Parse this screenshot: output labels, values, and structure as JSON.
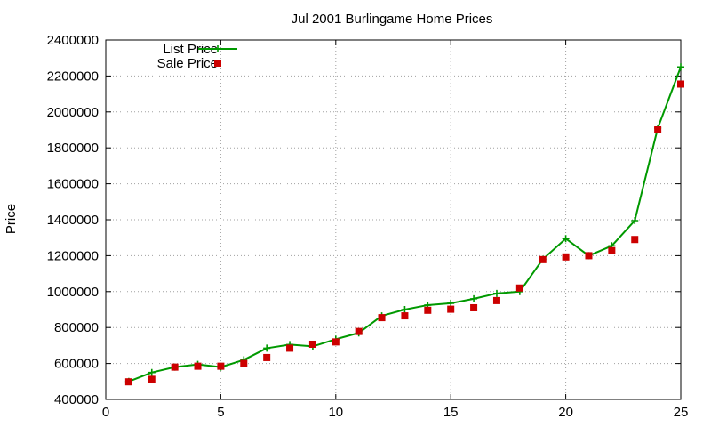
{
  "chart_data": {
    "type": "line",
    "title": "Jul 2001 Burlingame Home Prices",
    "xlabel": "",
    "ylabel": "Price",
    "xlim": [
      0,
      25
    ],
    "ylim": [
      400000,
      2400000
    ],
    "xticks": [
      0,
      5,
      10,
      15,
      20,
      25
    ],
    "xtick_labels": [
      "0",
      "5",
      "10",
      "15",
      "20",
      "25"
    ],
    "yticks": [
      400000,
      600000,
      800000,
      1000000,
      1200000,
      1400000,
      1600000,
      1800000,
      2000000,
      2200000,
      2400000
    ],
    "ytick_labels": [
      "400000",
      "600000",
      "800000",
      "1000000",
      "1200000",
      "1400000",
      "1600000",
      "1800000",
      "2000000",
      "2200000",
      "2400000"
    ],
    "grid": true,
    "legend_position": "top-left",
    "x": [
      1,
      2,
      3,
      4,
      5,
      6,
      7,
      8,
      9,
      10,
      11,
      12,
      13,
      14,
      15,
      16,
      17,
      18,
      19,
      20,
      21,
      22,
      23,
      24,
      25
    ],
    "series": [
      {
        "name": "List Price",
        "style": "line-plus",
        "color": "#009900",
        "values": [
          500000,
          550000,
          580000,
          595000,
          580000,
          620000,
          685000,
          705000,
          695000,
          735000,
          770000,
          865000,
          900000,
          925000,
          935000,
          960000,
          990000,
          1000000,
          1180000,
          1295000,
          1200000,
          1255000,
          1395000,
          1910000,
          2250000
        ]
      },
      {
        "name": "Sale Price",
        "style": "square-points",
        "color": "#cc0000",
        "values": [
          498000,
          512000,
          580000,
          585000,
          585000,
          600000,
          633000,
          685000,
          707000,
          720000,
          778000,
          855000,
          865000,
          896000,
          902000,
          910000,
          950000,
          1020000,
          1178000,
          1193000,
          1200000,
          1228000,
          1290000,
          1900000,
          2155000
        ]
      }
    ]
  }
}
